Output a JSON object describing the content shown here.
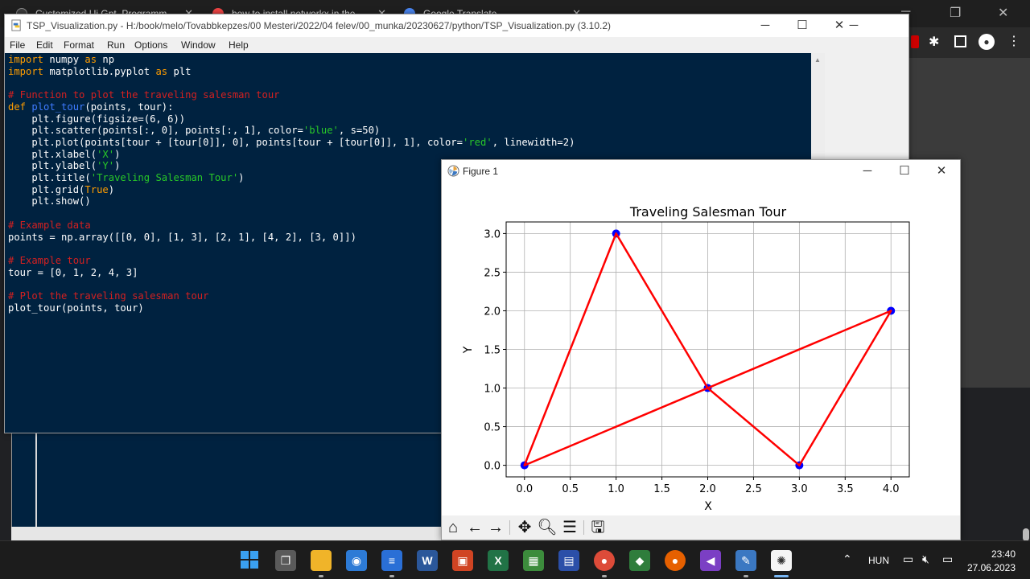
{
  "browser": {
    "tabs": [
      {
        "label": "Customized Ui Gpt. Programm"
      },
      {
        "label": "how to install networkx in the"
      },
      {
        "label": "Google Translate"
      }
    ],
    "icons": [
      "extensions-icon",
      "sidebar-icon",
      "profile-icon",
      "menu-icon"
    ]
  },
  "idle": {
    "title": "TSP_Visualization.py - H:/book/melo/Tovabbkepzes/00 Mesteri/2022/04 felev/00_munka/20230627/python/TSP_Visualization.py (3.10.2)",
    "menu": [
      "File",
      "Edit",
      "Format",
      "Run",
      "Options",
      "Window",
      "Help"
    ],
    "code": [
      [
        {
          "t": "import",
          "c": "kw"
        },
        {
          "t": " numpy "
        },
        {
          "t": "as",
          "c": "kw"
        },
        {
          "t": " np"
        }
      ],
      [
        {
          "t": "import",
          "c": "kw"
        },
        {
          "t": " matplotlib.pyplot "
        },
        {
          "t": "as",
          "c": "kw"
        },
        {
          "t": " plt"
        }
      ],
      [],
      [
        {
          "t": "# Function to plot the traveling salesman tour",
          "c": "cm"
        }
      ],
      [
        {
          "t": "def",
          "c": "kw"
        },
        {
          "t": " "
        },
        {
          "t": "plot_tour",
          "c": "fn"
        },
        {
          "t": "(points, tour):"
        }
      ],
      [
        {
          "t": "    plt.figure(figsize=(6, 6))"
        }
      ],
      [
        {
          "t": "    plt.scatter(points[:, 0], points[:, 1], color="
        },
        {
          "t": "'blue'",
          "c": "st"
        },
        {
          "t": ", s=50)"
        }
      ],
      [
        {
          "t": "    plt.plot(points[tour + [tour[0]], 0], points[tour + [tour[0]], 1], color="
        },
        {
          "t": "'red'",
          "c": "st"
        },
        {
          "t": ", linewidth=2)"
        }
      ],
      [
        {
          "t": "    plt.xlabel("
        },
        {
          "t": "'X'",
          "c": "st"
        },
        {
          "t": ")"
        }
      ],
      [
        {
          "t": "    plt.ylabel("
        },
        {
          "t": "'Y'",
          "c": "st"
        },
        {
          "t": ")"
        }
      ],
      [
        {
          "t": "    plt.title("
        },
        {
          "t": "'Traveling Salesman Tour'",
          "c": "st"
        },
        {
          "t": ")"
        }
      ],
      [
        {
          "t": "    plt.grid("
        },
        {
          "t": "True",
          "c": "kw"
        },
        {
          "t": ")"
        }
      ],
      [
        {
          "t": "    plt.show()"
        }
      ],
      [],
      [
        {
          "t": "# Example data",
          "c": "cm"
        }
      ],
      [
        {
          "t": "points = np.array([[0, 0], [1, 3], [2, 1], [4, 2], [3, 0]])"
        }
      ],
      [],
      [
        {
          "t": "# Example tour",
          "c": "cm"
        }
      ],
      [
        {
          "t": "tour = [0, 1, 2, 4, 3]"
        }
      ],
      [],
      [
        {
          "t": "# Plot the traveling salesman tour",
          "c": "cm"
        }
      ],
      [
        {
          "t": "plot_tour(points, tour)"
        }
      ]
    ]
  },
  "figure": {
    "window_title": "Figure 1",
    "toolbar": [
      "home-icon",
      "back-icon",
      "forward-icon",
      "pan-icon",
      "zoom-icon",
      "configure-icon",
      "save-icon"
    ]
  },
  "chart_data": {
    "type": "scatter",
    "title": "Traveling Salesman Tour",
    "xlabel": "X",
    "ylabel": "Y",
    "xlim": [
      -0.2,
      4.2
    ],
    "ylim": [
      -0.15,
      3.15
    ],
    "xticks": [
      "0.0",
      "0.5",
      "1.0",
      "1.5",
      "2.0",
      "2.5",
      "3.0",
      "3.5",
      "4.0"
    ],
    "yticks": [
      "0.0",
      "0.5",
      "1.0",
      "1.5",
      "2.0",
      "2.5",
      "3.0"
    ],
    "grid": true,
    "series": [
      {
        "kind": "scatter",
        "color": "#0000ff",
        "points": [
          [
            0,
            0
          ],
          [
            1,
            3
          ],
          [
            2,
            1
          ],
          [
            4,
            2
          ],
          [
            3,
            0
          ]
        ]
      },
      {
        "kind": "line",
        "color": "#ff0000",
        "points": [
          [
            0,
            0
          ],
          [
            1,
            3
          ],
          [
            2,
            1
          ],
          [
            3,
            0
          ],
          [
            4,
            2
          ],
          [
            0,
            0
          ]
        ]
      }
    ]
  },
  "taskbar": {
    "language": "HUN",
    "time": "23:40",
    "date": "27.06.2023"
  }
}
